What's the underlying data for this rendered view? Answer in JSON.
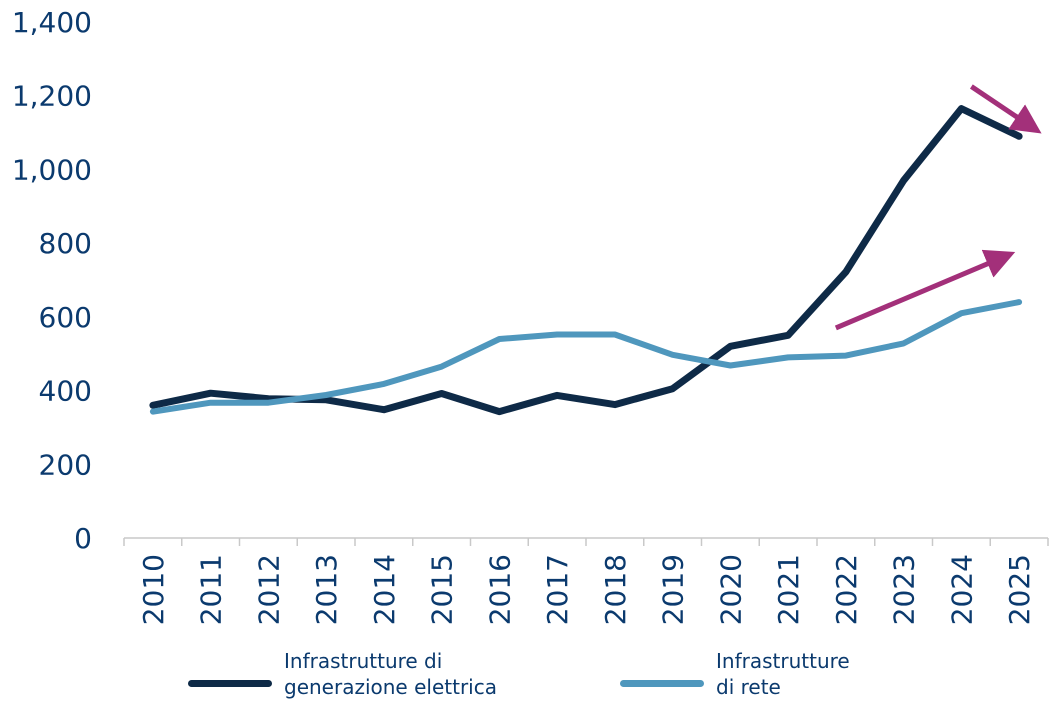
{
  "chart_data": {
    "type": "line",
    "title": "",
    "xlabel": "",
    "ylabel": "",
    "categories": [
      "2010",
      "2011",
      "2012",
      "2013",
      "2014",
      "2015",
      "2016",
      "2017",
      "2018",
      "2019",
      "2020",
      "2021",
      "2022",
      "2023",
      "2024",
      "2025"
    ],
    "yticks": [
      "0",
      "200",
      "400",
      "600",
      "800",
      "1,000",
      "1,200",
      "1,400"
    ],
    "ylim": [
      0,
      1400
    ],
    "grid": false,
    "legend_position": "bottom",
    "series": [
      {
        "name": "Infrastrutture di\ngenerazione elettrica",
        "color": "#0e2a47",
        "values": [
          360,
          393,
          378,
          375,
          348,
          392,
          343,
          387,
          362,
          405,
          520,
          550,
          722,
          970,
          1165,
          1090
        ]
      },
      {
        "name": "Infrastrutture\ndi rete",
        "color": "#4f97bd",
        "values": [
          343,
          367,
          367,
          388,
          418,
          465,
          540,
          552,
          552,
          497,
          468,
          490,
          495,
          528,
          610,
          640
        ]
      }
    ],
    "annotations": [
      {
        "type": "arrow",
        "color": "#a3307a",
        "direction": "down-right"
      },
      {
        "type": "arrow",
        "color": "#a3307a",
        "direction": "up-right"
      }
    ]
  }
}
